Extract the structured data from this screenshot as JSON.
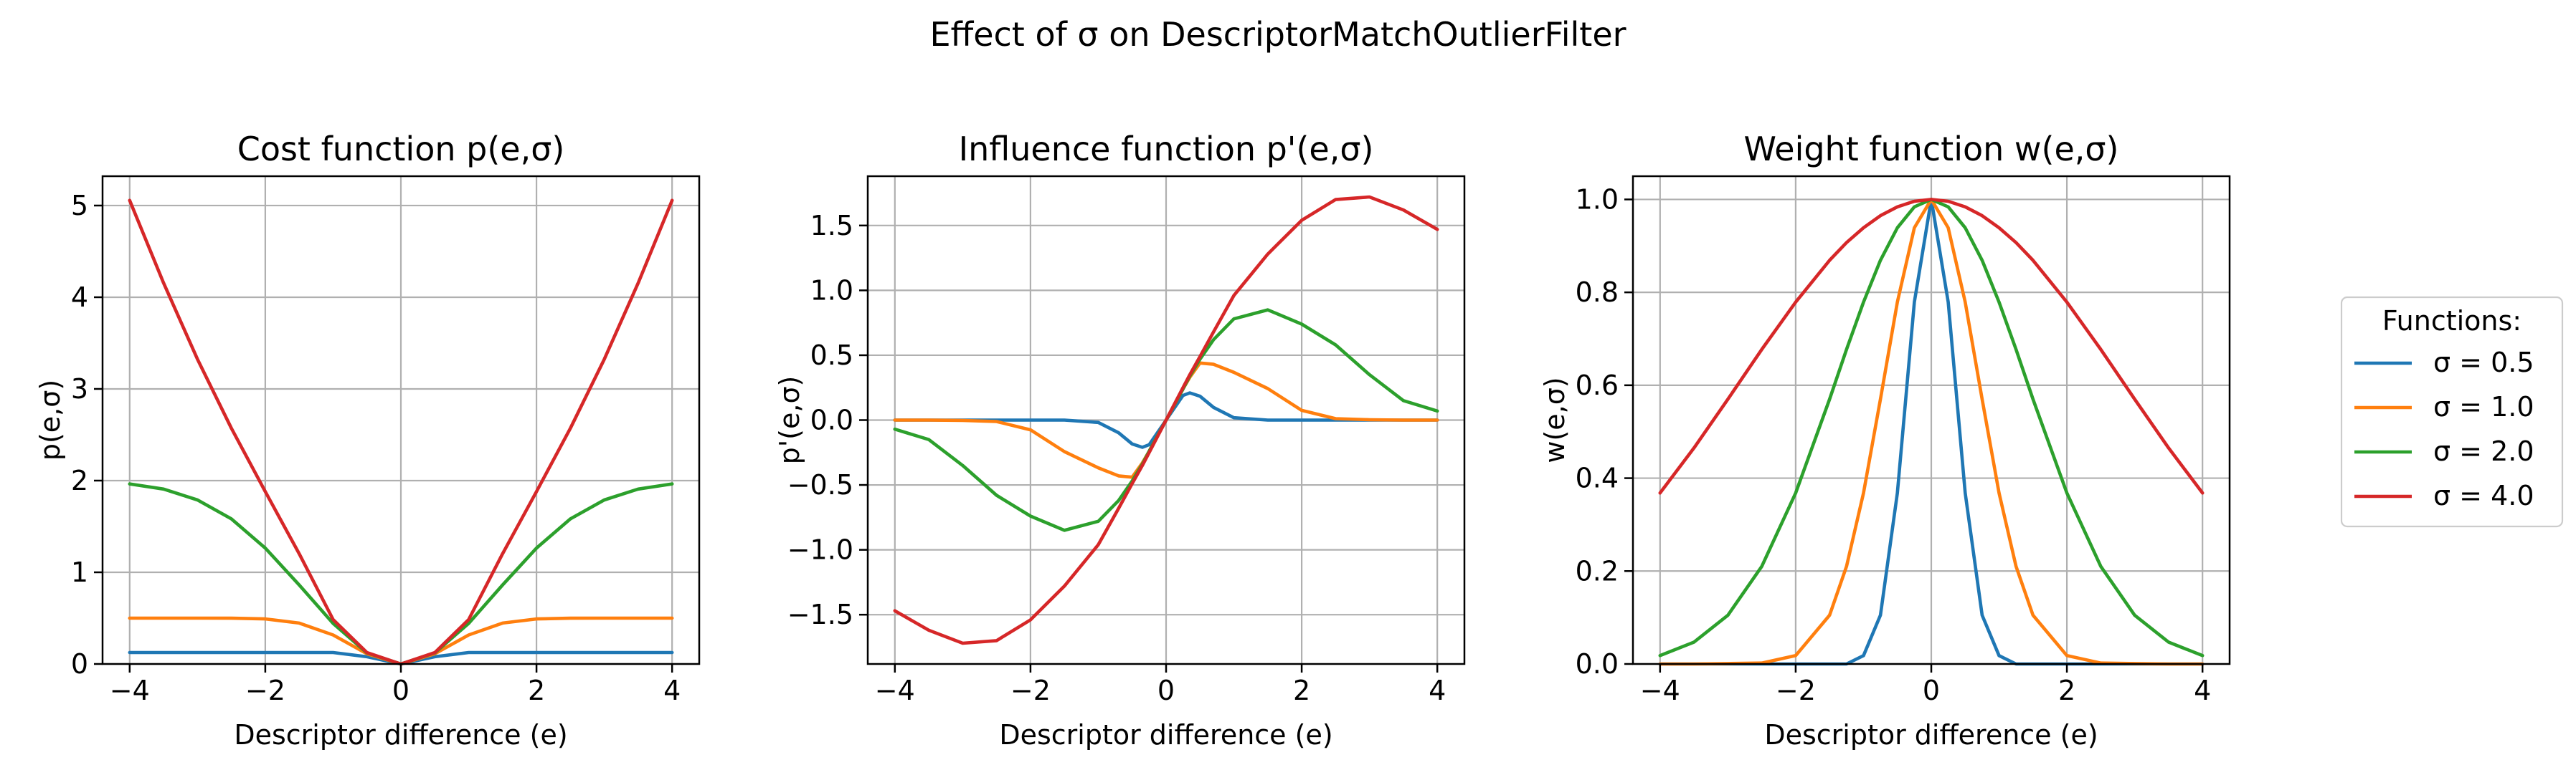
{
  "figure_title": "Effect of σ on DescriptorMatchOutlierFilter",
  "chart_data": [
    {
      "type": "line",
      "title": "Cost function p(e,σ)",
      "xlabel": "Descriptor difference (e)",
      "ylabel": "p(e,σ)",
      "xlim": [
        -4.4,
        4.4
      ],
      "ylim": [
        0,
        5.32
      ],
      "xticks": [
        -4,
        -2,
        0,
        2,
        4
      ],
      "yticks": [
        0,
        1,
        2,
        3,
        4,
        5
      ],
      "grid": true,
      "x": [
        -4,
        -3.5,
        -3,
        -2.5,
        -2,
        -1.5,
        -1,
        -0.5,
        0,
        0.5,
        1,
        1.5,
        2,
        2.5,
        3,
        3.5,
        4
      ],
      "series": [
        {
          "name": "σ = 0.5",
          "color": "#1f77b4",
          "values": [
            0.125,
            0.125,
            0.125,
            0.125,
            0.125,
            0.125,
            0.125,
            0.079,
            0,
            0.079,
            0.125,
            0.125,
            0.125,
            0.125,
            0.125,
            0.125,
            0.125
          ]
        },
        {
          "name": "σ = 1.0",
          "color": "#ff7f0e",
          "values": [
            0.5,
            0.5,
            0.5,
            0.499,
            0.491,
            0.446,
            0.316,
            0.111,
            0,
            0.111,
            0.316,
            0.446,
            0.491,
            0.499,
            0.5,
            0.5,
            0.5
          ]
        },
        {
          "name": "σ = 2.0",
          "color": "#2ca02c",
          "values": [
            1.964,
            1.908,
            1.789,
            1.583,
            1.264,
            0.862,
            0.442,
            0.121,
            0,
            0.121,
            0.442,
            0.862,
            1.264,
            1.583,
            1.789,
            1.908,
            1.964
          ]
        },
        {
          "name": "σ = 4.0",
          "color": "#d62728",
          "values": [
            5.057,
            4.155,
            3.323,
            2.572,
            1.88,
            1.202,
            0.484,
            0.124,
            0,
            0.124,
            0.484,
            1.202,
            1.88,
            2.572,
            3.323,
            4.155,
            5.057
          ]
        }
      ]
    },
    {
      "type": "line",
      "title": "Influence function p'(e,σ)",
      "xlabel": "Descriptor difference (e)",
      "ylabel": "p'(e,σ)",
      "xlim": [
        -4.4,
        4.4
      ],
      "ylim": [
        -1.88,
        1.88
      ],
      "xticks": [
        -4,
        -2,
        0,
        2,
        4
      ],
      "yticks": [
        -1.5,
        -1.0,
        -0.5,
        0.0,
        0.5,
        1.0,
        1.5
      ],
      "grid": true,
      "x": [
        -4,
        -3.5,
        -3,
        -2.5,
        -2,
        -1.5,
        -1,
        -0.7,
        -0.5,
        -0.35,
        -0.25,
        0,
        0.25,
        0.35,
        0.5,
        0.7,
        1,
        1.5,
        2,
        2.5,
        3,
        3.5,
        4
      ],
      "series": [
        {
          "name": "σ = 0.5",
          "color": "#1f77b4",
          "values": [
            0,
            0,
            0,
            0,
            0,
            0,
            -0.018,
            -0.098,
            -0.184,
            -0.21,
            -0.19,
            0,
            0.19,
            0.21,
            0.184,
            0.098,
            0.018,
            0,
            0,
            0,
            0,
            0,
            0
          ]
        },
        {
          "name": "σ = 1.0",
          "color": "#ff7f0e",
          "values": [
            0,
            0,
            -0.003,
            -0.011,
            -0.075,
            -0.243,
            -0.368,
            -0.43,
            -0.44,
            -0.33,
            -0.24,
            0,
            0.24,
            0.33,
            0.44,
            0.43,
            0.368,
            0.243,
            0.075,
            0.011,
            0.003,
            0,
            0
          ]
        },
        {
          "name": "σ = 2.0",
          "color": "#2ca02c",
          "values": [
            -0.07,
            -0.15,
            -0.35,
            -0.58,
            -0.74,
            -0.85,
            -0.78,
            -0.62,
            -0.47,
            -0.34,
            -0.24,
            0,
            0.24,
            0.34,
            0.47,
            0.62,
            0.78,
            0.85,
            0.74,
            0.58,
            0.35,
            0.15,
            0.07
          ]
        },
        {
          "name": "σ = 4.0",
          "color": "#d62728",
          "values": [
            -1.47,
            -1.62,
            -1.72,
            -1.7,
            -1.54,
            -1.28,
            -0.96,
            -0.68,
            -0.49,
            -0.35,
            -0.25,
            0,
            0.25,
            0.35,
            0.49,
            0.68,
            0.96,
            1.28,
            1.54,
            1.7,
            1.72,
            1.62,
            1.47
          ]
        }
      ]
    },
    {
      "type": "line",
      "title": "Weight function w(e,σ)",
      "xlabel": "Descriptor difference (e)",
      "ylabel": "w(e,σ)",
      "xlim": [
        -4.4,
        4.4
      ],
      "ylim": [
        0,
        1.05
      ],
      "xticks": [
        -4,
        -2,
        0,
        2,
        4
      ],
      "yticks": [
        0.0,
        0.2,
        0.4,
        0.6,
        0.8,
        1.0
      ],
      "grid": true,
      "x": [
        -4,
        -3.5,
        -3,
        -2.5,
        -2,
        -1.5,
        -1.25,
        -1,
        -0.75,
        -0.5,
        -0.25,
        0,
        0.25,
        0.5,
        0.75,
        1,
        1.25,
        1.5,
        2,
        2.5,
        3,
        3.5,
        4
      ],
      "series": [
        {
          "name": "σ = 0.5",
          "color": "#1f77b4",
          "values": [
            0,
            0,
            0,
            0,
            0,
            0,
            0,
            0.018,
            0.105,
            0.368,
            0.779,
            1,
            0.779,
            0.368,
            0.105,
            0.018,
            0,
            0,
            0,
            0,
            0,
            0,
            0
          ]
        },
        {
          "name": "σ = 1.0",
          "color": "#ff7f0e",
          "values": [
            0,
            0,
            0.001,
            0.002,
            0.018,
            0.105,
            0.21,
            0.368,
            0.57,
            0.779,
            0.939,
            1,
            0.939,
            0.779,
            0.57,
            0.368,
            0.21,
            0.105,
            0.018,
            0.002,
            0.001,
            0,
            0
          ]
        },
        {
          "name": "σ = 2.0",
          "color": "#2ca02c",
          "values": [
            0.018,
            0.047,
            0.105,
            0.21,
            0.368,
            0.57,
            0.677,
            0.779,
            0.869,
            0.939,
            0.984,
            1,
            0.984,
            0.939,
            0.869,
            0.779,
            0.677,
            0.57,
            0.368,
            0.21,
            0.105,
            0.047,
            0.018
          ]
        },
        {
          "name": "σ = 4.0",
          "color": "#d62728",
          "values": [
            0.368,
            0.465,
            0.57,
            0.677,
            0.779,
            0.869,
            0.907,
            0.939,
            0.965,
            0.984,
            0.996,
            1,
            0.996,
            0.984,
            0.965,
            0.939,
            0.907,
            0.869,
            0.779,
            0.677,
            0.57,
            0.465,
            0.368
          ]
        }
      ]
    }
  ],
  "legend": {
    "title": "Functions:",
    "placement": "right, outside",
    "entries": [
      {
        "label": "σ = 0.5",
        "color": "#1f77b4"
      },
      {
        "label": "σ = 1.0",
        "color": "#ff7f0e"
      },
      {
        "label": "σ = 2.0",
        "color": "#2ca02c"
      },
      {
        "label": "σ = 4.0",
        "color": "#d62728"
      }
    ]
  }
}
